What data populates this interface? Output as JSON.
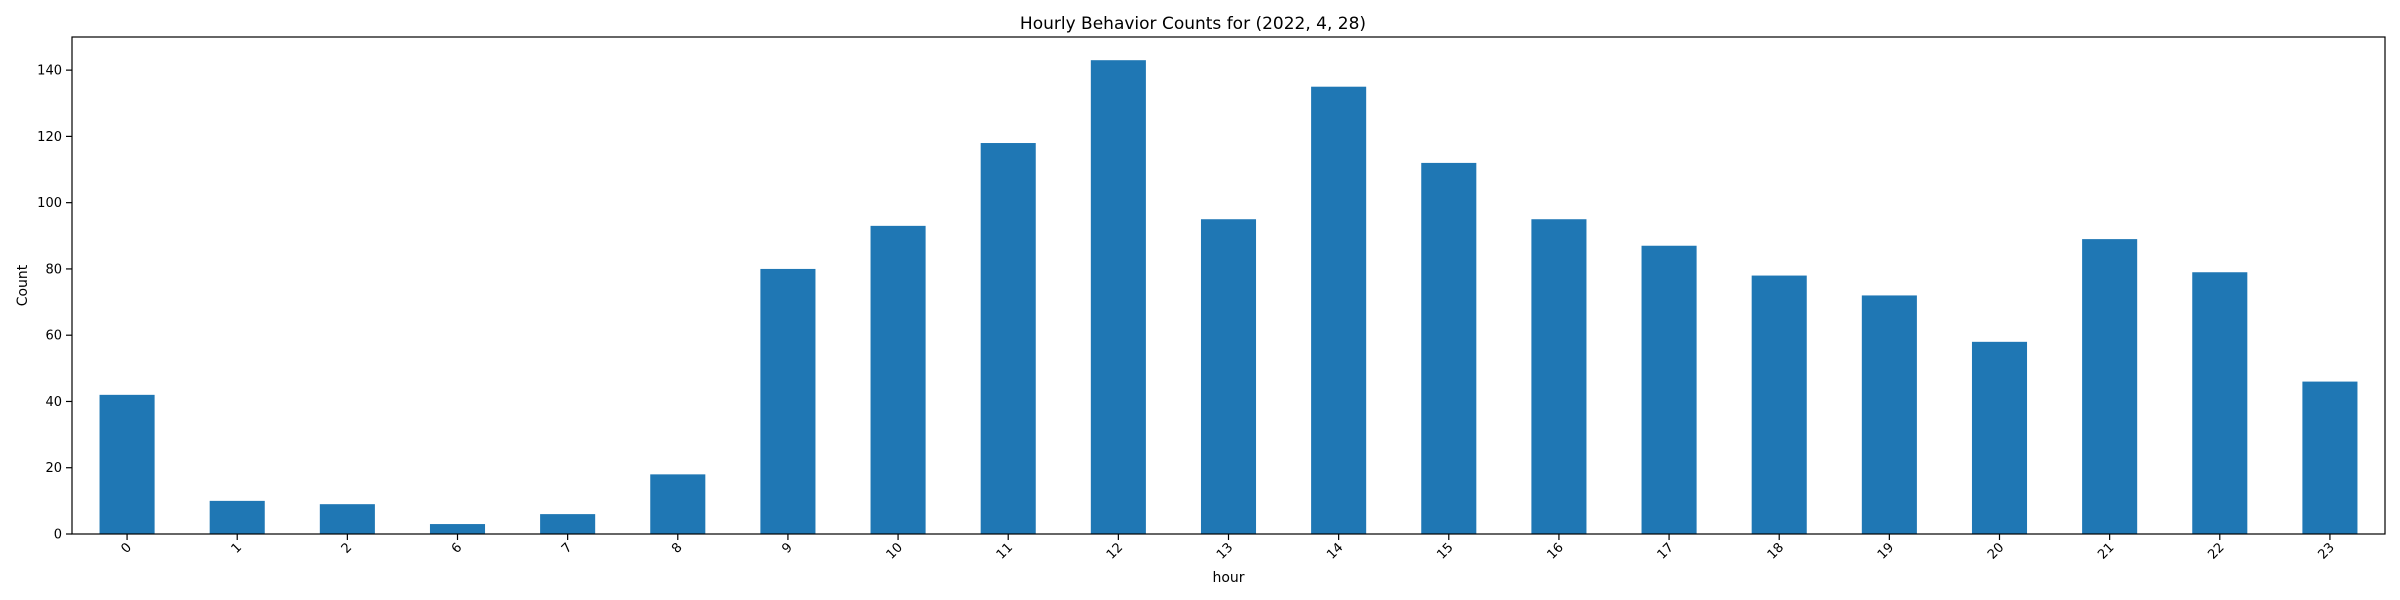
{
  "chart_data": {
    "type": "bar",
    "title": "Hourly Behavior Counts for (2022, 4, 28)",
    "xlabel": "hour",
    "ylabel": "Count",
    "categories": [
      "0",
      "1",
      "2",
      "6",
      "7",
      "8",
      "9",
      "10",
      "11",
      "12",
      "13",
      "14",
      "15",
      "16",
      "17",
      "18",
      "19",
      "20",
      "21",
      "22",
      "23"
    ],
    "values": [
      42,
      10,
      9,
      3,
      6,
      18,
      80,
      93,
      118,
      143,
      95,
      135,
      112,
      95,
      87,
      78,
      72,
      58,
      89,
      79,
      46
    ],
    "ylim": [
      0,
      150
    ],
    "yticks": [
      0,
      20,
      40,
      60,
      80,
      100,
      120,
      140
    ],
    "bar_color": "#1f77b4",
    "grid": false,
    "xtick_rotation": 45
  }
}
